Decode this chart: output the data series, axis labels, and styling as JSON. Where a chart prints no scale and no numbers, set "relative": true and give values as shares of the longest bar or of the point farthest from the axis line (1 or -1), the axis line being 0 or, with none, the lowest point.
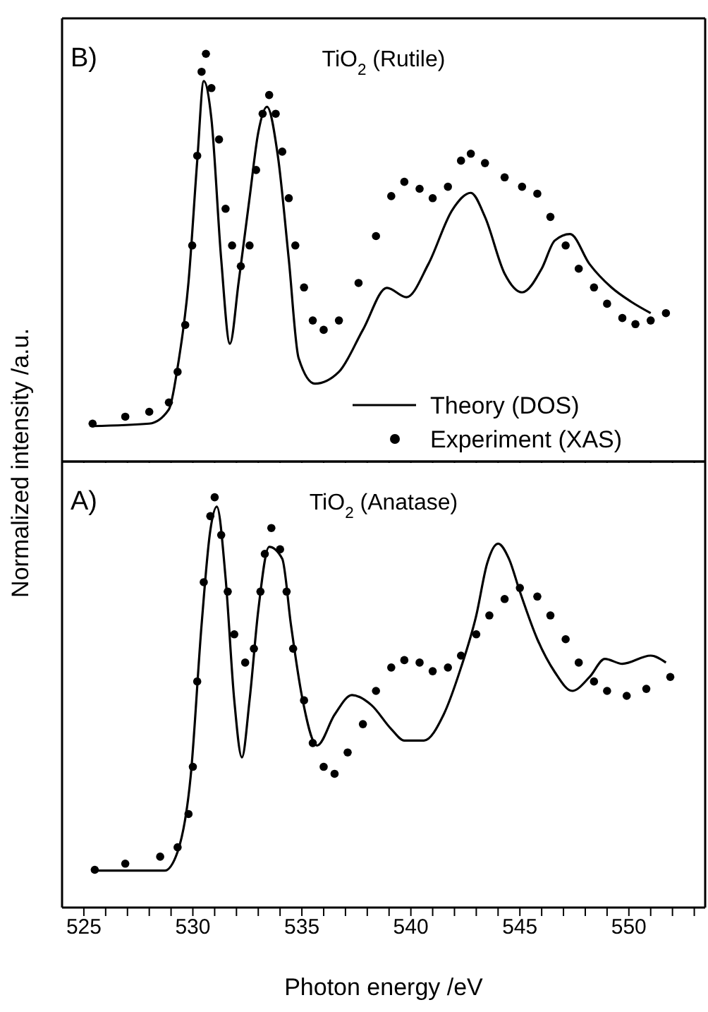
{
  "chart_data": [
    {
      "type": "line",
      "relative": true,
      "ylabel": "Normalized intensity /a.u.",
      "annotations": [
        "B)",
        "TiO$_{2}$ (Rutile)"
      ],
      "legend": "bottom right",
      "tick_labels": false,
      "xlim": [
        524,
        553.5
      ],
      "xticks": [
        525,
        {
          "value": 526,
          "label": null
        },
        {
          "value": 527,
          "label": null
        },
        {
          "value": 528,
          "label": null
        },
        {
          "value": 529,
          "label": null
        },
        530,
        {
          "value": 531,
          "label": null
        },
        {
          "value": 532,
          "label": null
        },
        {
          "value": 533,
          "label": null
        },
        {
          "value": 534,
          "label": null
        },
        535,
        {
          "value": 536,
          "label": null
        },
        {
          "value": 537,
          "label": null
        },
        {
          "value": 538,
          "label": null
        },
        {
          "value": 539,
          "label": null
        },
        540,
        {
          "value": 541,
          "label": null
        },
        {
          "value": 542,
          "label": null
        },
        {
          "value": 543,
          "label": null
        },
        {
          "value": 544,
          "label": null
        },
        545,
        {
          "value": 546,
          "label": null
        },
        {
          "value": 547,
          "label": null
        },
        {
          "value": 548,
          "label": null
        },
        {
          "value": 549,
          "label": null
        },
        550,
        {
          "value": 551,
          "label": null
        },
        {
          "value": 552,
          "label": null
        },
        {
          "value": 553,
          "label": null
        }
      ],
      "series": [
        {
          "name": "Theory (DOS)",
          "color": "#000000",
          "line_style": "solid",
          "marker": "none",
          "x": [
            525.4,
            528.0,
            528.9,
            529.3,
            529.8,
            530.2,
            530.5,
            530.85,
            531.3,
            531.7,
            532.1,
            532.6,
            533.0,
            533.4,
            533.9,
            534.4,
            534.85,
            535.6,
            536.7,
            537.8,
            538.9,
            539.8,
            540.8,
            541.9,
            542.75,
            543.4,
            544.3,
            545.1,
            546.0,
            546.6,
            547.3,
            548.2,
            549.2,
            550.1,
            551.0
          ],
          "values": [
            0.087,
            0.093,
            0.128,
            0.231,
            0.44,
            0.737,
            0.933,
            0.841,
            0.496,
            0.289,
            0.44,
            0.646,
            0.807,
            0.87,
            0.749,
            0.496,
            0.254,
            0.191,
            0.22,
            0.323,
            0.426,
            0.403,
            0.484,
            0.617,
            0.659,
            0.6,
            0.461,
            0.415,
            0.473,
            0.542,
            0.558,
            0.484,
            0.427,
            0.392,
            0.364
          ]
        },
        {
          "name": "Experiment (XAS)",
          "type": "scatter",
          "color": "#000000",
          "marker": "circle",
          "x": [
            525.4,
            526.9,
            528.0,
            528.9,
            529.3,
            529.65,
            529.97,
            530.2,
            530.4,
            530.6,
            530.85,
            531.2,
            531.5,
            531.8,
            532.2,
            532.6,
            532.9,
            533.2,
            533.5,
            533.8,
            534.1,
            534.4,
            534.7,
            535.1,
            535.5,
            536.0,
            536.7,
            537.6,
            538.4,
            539.1,
            539.7,
            540.4,
            541.0,
            541.7,
            542.3,
            542.75,
            543.4,
            544.3,
            545.1,
            545.8,
            546.4,
            547.1,
            547.7,
            548.4,
            549.0,
            549.7,
            550.3,
            551.0,
            551.7
          ],
          "values": [
            0.093,
            0.11,
            0.122,
            0.145,
            0.22,
            0.335,
            0.53,
            0.75,
            0.956,
            1.0,
            0.916,
            0.79,
            0.62,
            0.53,
            0.479,
            0.53,
            0.715,
            0.853,
            0.899,
            0.853,
            0.76,
            0.646,
            0.53,
            0.427,
            0.346,
            0.323,
            0.346,
            0.438,
            0.553,
            0.651,
            0.686,
            0.669,
            0.646,
            0.674,
            0.738,
            0.755,
            0.732,
            0.697,
            0.674,
            0.657,
            0.6,
            0.53,
            0.473,
            0.427,
            0.387,
            0.352,
            0.337,
            0.346,
            0.364
          ]
        }
      ]
    },
    {
      "type": "line",
      "relative": true,
      "xlabel": "Photon energy /eV",
      "annotations": [
        "A)",
        "TiO$_{2}$ (Anatase)"
      ],
      "tick_labels": "x",
      "xlim": [
        524,
        553.5
      ],
      "xticks": [
        525,
        {
          "value": 526,
          "label": null
        },
        {
          "value": 527,
          "label": null
        },
        {
          "value": 528,
          "label": null
        },
        {
          "value": 529,
          "label": null
        },
        530,
        {
          "value": 531,
          "label": null
        },
        {
          "value": 532,
          "label": null
        },
        {
          "value": 533,
          "label": null
        },
        {
          "value": 534,
          "label": null
        },
        535,
        {
          "value": 536,
          "label": null
        },
        {
          "value": 537,
          "label": null
        },
        {
          "value": 538,
          "label": null
        },
        {
          "value": 539,
          "label": null
        },
        540,
        {
          "value": 541,
          "label": null
        },
        {
          "value": 542,
          "label": null
        },
        {
          "value": 543,
          "label": null
        },
        {
          "value": 544,
          "label": null
        },
        545,
        {
          "value": 546,
          "label": null
        },
        {
          "value": 547,
          "label": null
        },
        {
          "value": 548,
          "label": null
        },
        {
          "value": 549,
          "label": null
        },
        550,
        {
          "value": 551,
          "label": null
        },
        {
          "value": 552,
          "label": null
        },
        {
          "value": 553,
          "label": null
        }
      ],
      "series": [
        {
          "color": "#000000",
          "line_style": "solid",
          "marker": "none",
          "x": [
            525.5,
            528.7,
            529.3,
            529.9,
            530.4,
            530.8,
            531.1,
            531.5,
            531.9,
            532.25,
            532.6,
            533.0,
            533.5,
            534.1,
            534.5,
            535.0,
            535.7,
            536.5,
            537.3,
            538.2,
            539.1,
            539.7,
            540.6,
            541.5,
            542.3,
            543.0,
            543.5,
            544.0,
            544.5,
            545.0,
            545.8,
            546.6,
            547.4,
            548.2,
            548.9,
            549.7,
            551.0,
            551.7
          ],
          "values": [
            0.09,
            0.09,
            0.136,
            0.32,
            0.689,
            0.919,
            0.977,
            0.804,
            0.505,
            0.366,
            0.505,
            0.724,
            0.879,
            0.85,
            0.689,
            0.516,
            0.395,
            0.47,
            0.518,
            0.493,
            0.435,
            0.407,
            0.407,
            0.47,
            0.585,
            0.712,
            0.839,
            0.887,
            0.85,
            0.77,
            0.654,
            0.574,
            0.528,
            0.562,
            0.606,
            0.594,
            0.614,
            0.597
          ]
        },
        {
          "type": "scatter",
          "color": "#000000",
          "marker": "circle",
          "x": [
            525.5,
            526.9,
            528.5,
            529.3,
            529.8,
            530.0,
            530.2,
            530.5,
            530.8,
            531.0,
            531.3,
            531.6,
            531.9,
            532.4,
            532.8,
            533.1,
            533.3,
            533.6,
            534.0,
            534.3,
            534.6,
            535.1,
            535.5,
            536.0,
            536.5,
            537.1,
            537.8,
            538.4,
            539.1,
            539.7,
            540.4,
            541.0,
            541.7,
            542.3,
            543.0,
            543.6,
            544.3,
            545.0,
            545.8,
            546.4,
            547.1,
            547.7,
            548.4,
            549.0,
            549.9,
            550.8,
            551.9
          ],
          "values": [
            0.092,
            0.107,
            0.124,
            0.147,
            0.228,
            0.343,
            0.551,
            0.793,
            0.954,
            1.0,
            0.908,
            0.77,
            0.666,
            0.597,
            0.631,
            0.77,
            0.862,
            0.925,
            0.873,
            0.77,
            0.631,
            0.505,
            0.401,
            0.343,
            0.326,
            0.378,
            0.447,
            0.528,
            0.585,
            0.603,
            0.597,
            0.576,
            0.585,
            0.614,
            0.666,
            0.712,
            0.752,
            0.779,
            0.758,
            0.712,
            0.654,
            0.597,
            0.551,
            0.528,
            0.516,
            0.533,
            0.562
          ]
        }
      ]
    }
  ]
}
